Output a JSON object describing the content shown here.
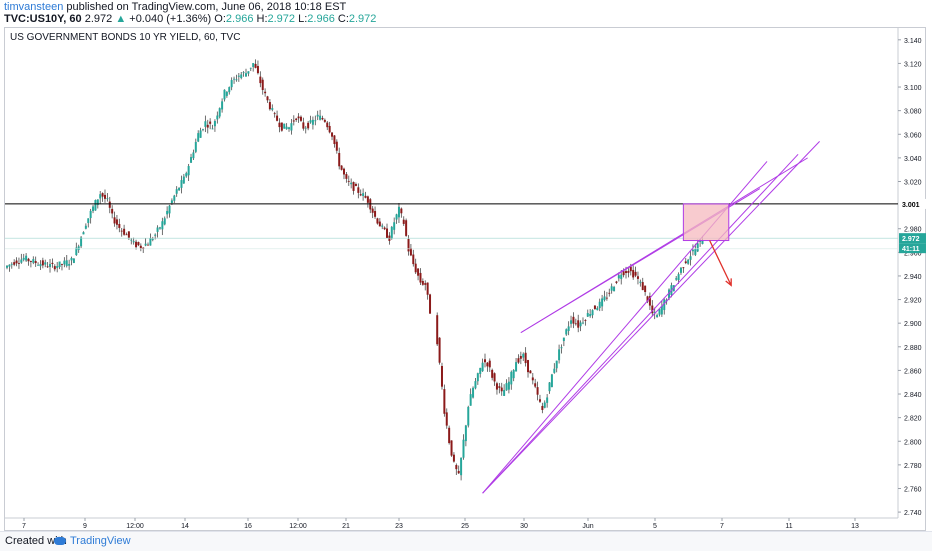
{
  "header": {
    "author": "timvansteen",
    "published": " published on TradingView.com, June 06, 2018 10:18 EST",
    "symbol": "TVC:US10Y, 60",
    "last": "2.972",
    "change": "+0.040 (+1.36%)",
    "o_label": "O:",
    "o": "2.966",
    "h_label": "H:",
    "h": "2.972",
    "l_label": "L:",
    "l": "2.966",
    "c_label": "C:",
    "c": "2.972"
  },
  "chart_title": "US GOVERNMENT BONDS 10 YR YIELD, 60, TVC",
  "footer": {
    "created": "Created with",
    "brand": "TradingView"
  },
  "colors": {
    "up": "#26a69a",
    "down": "#8b1a1a",
    "wick": "#4a4a4a",
    "channel": "#b03ce6",
    "horizontal": "#000000",
    "box_fill": "#f6b9bf",
    "box_stroke": "#b03ce6",
    "arrow": "#e0302a",
    "price_tag": "#26a69a"
  },
  "chart_data": {
    "type": "candlestick",
    "title": "US GOVERNMENT BONDS 10 YR YIELD, 60, TVC",
    "y_axis": {
      "ticks": [
        2.74,
        2.76,
        2.78,
        2.8,
        2.82,
        2.84,
        2.86,
        2.88,
        2.9,
        2.92,
        2.94,
        2.96,
        2.98,
        3.02,
        3.04,
        3.06,
        3.08,
        3.1,
        3.12,
        3.14
      ],
      "range": [
        2.735,
        3.15
      ]
    },
    "x_axis": {
      "ticks": [
        "7",
        "9",
        "12:00",
        "14",
        "16",
        "12:00",
        "21",
        "23",
        "25",
        "30",
        "Jun",
        "5",
        "7",
        "11",
        "13"
      ]
    },
    "horizontal_line": 3.001,
    "price_labels": {
      "level": "3.001",
      "last": "2.972",
      "countdown": "41:11"
    },
    "price_path": [
      [
        0,
        2.947
      ],
      [
        4,
        2.952
      ],
      [
        8,
        2.955
      ],
      [
        12,
        2.952
      ],
      [
        16,
        2.95
      ],
      [
        20,
        2.948
      ],
      [
        24,
        2.95
      ],
      [
        28,
        2.953
      ],
      [
        30,
        2.962
      ],
      [
        34,
        2.985
      ],
      [
        37,
        2.998
      ],
      [
        40,
        3.01
      ],
      [
        43,
        3.003
      ],
      [
        45,
        2.99
      ],
      [
        48,
        2.981
      ],
      [
        51,
        2.975
      ],
      [
        54,
        2.967
      ],
      [
        57,
        2.965
      ],
      [
        60,
        2.968
      ],
      [
        63,
        2.975
      ],
      [
        66,
        2.985
      ],
      [
        69,
        2.999
      ],
      [
        72,
        3.012
      ],
      [
        75,
        3.022
      ],
      [
        78,
        3.04
      ],
      [
        81,
        3.06
      ],
      [
        84,
        3.07
      ],
      [
        87,
        3.066
      ],
      [
        89,
        3.078
      ],
      [
        92,
        3.095
      ],
      [
        95,
        3.104
      ],
      [
        98,
        3.11
      ],
      [
        101,
        3.112
      ],
      [
        104,
        3.12
      ],
      [
        106,
        3.11
      ],
      [
        108,
        3.098
      ],
      [
        110,
        3.088
      ],
      [
        113,
        3.075
      ],
      [
        116,
        3.066
      ],
      [
        119,
        3.066
      ],
      [
        122,
        3.075
      ],
      [
        125,
        3.066
      ],
      [
        128,
        3.069
      ],
      [
        131,
        3.075
      ],
      [
        134,
        3.072
      ],
      [
        137,
        3.06
      ],
      [
        140,
        3.035
      ],
      [
        143,
        3.02
      ],
      [
        146,
        3.015
      ],
      [
        149,
        3.01
      ],
      [
        152,
        3.004
      ],
      [
        155,
        2.99
      ],
      [
        158,
        2.98
      ],
      [
        161,
        2.972
      ],
      [
        163,
        2.986
      ],
      [
        165,
        2.996
      ],
      [
        167,
        2.985
      ],
      [
        169,
        2.962
      ],
      [
        171,
        2.95
      ],
      [
        174,
        2.935
      ],
      [
        176,
        2.933
      ],
      [
        178,
        2.91
      ],
      [
        180,
        2.905
      ],
      [
        182,
        2.865
      ],
      [
        184,
        2.826
      ],
      [
        186,
        2.8
      ],
      [
        188,
        2.78
      ],
      [
        190,
        2.77
      ],
      [
        192,
        2.8
      ],
      [
        194,
        2.83
      ],
      [
        196,
        2.845
      ],
      [
        198,
        2.855
      ],
      [
        200,
        2.868
      ],
      [
        202,
        2.866
      ],
      [
        205,
        2.85
      ],
      [
        208,
        2.84
      ],
      [
        211,
        2.85
      ],
      [
        214,
        2.868
      ],
      [
        217,
        2.872
      ],
      [
        220,
        2.856
      ],
      [
        223,
        2.838
      ],
      [
        225,
        2.826
      ],
      [
        227,
        2.84
      ],
      [
        229,
        2.856
      ],
      [
        231,
        2.87
      ],
      [
        234,
        2.888
      ],
      [
        237,
        2.904
      ],
      [
        240,
        2.898
      ],
      [
        243,
        2.905
      ],
      [
        246,
        2.912
      ],
      [
        249,
        2.916
      ],
      [
        252,
        2.923
      ],
      [
        255,
        2.933
      ],
      [
        258,
        2.943
      ],
      [
        261,
        2.945
      ],
      [
        264,
        2.94
      ],
      [
        267,
        2.93
      ],
      [
        269,
        2.92
      ],
      [
        271,
        2.908
      ],
      [
        273,
        2.906
      ],
      [
        275,
        2.914
      ],
      [
        277,
        2.922
      ],
      [
        279,
        2.93
      ],
      [
        281,
        2.938
      ],
      [
        283,
        2.946
      ],
      [
        285,
        2.953
      ],
      [
        287,
        2.958
      ],
      [
        290,
        2.966
      ],
      [
        292,
        2.972
      ]
    ],
    "gaps_after_index": [
      61
    ],
    "channel_lines": [
      {
        "x0": 215,
        "y0": 2.892,
        "x1": 335,
        "y1": 3.04
      },
      {
        "x0": 215,
        "y0": 2.892,
        "x1": 315,
        "y1": 3.014
      },
      {
        "x0": 199,
        "y0": 2.756,
        "x1": 340,
        "y1": 3.054
      },
      {
        "x0": 199,
        "y0": 2.756,
        "x1": 318,
        "y1": 3.037
      },
      {
        "x0": 199,
        "y0": 2.756,
        "x1": 331,
        "y1": 3.043
      }
    ],
    "resistance_box": {
      "x0": 283,
      "y0": 2.97,
      "x1": 302,
      "y1": 3.001
    },
    "arrow": {
      "x0": 294,
      "y0": 2.97,
      "x1": 303,
      "y1": 2.932
    }
  }
}
